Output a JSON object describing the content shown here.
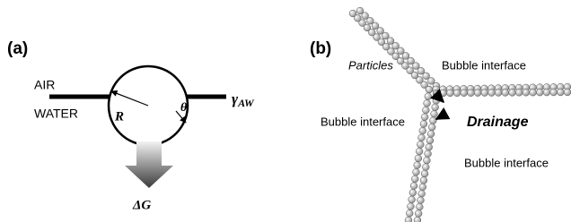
{
  "panel_a": {
    "label": "(a)",
    "air": "AIR",
    "water": "WATER",
    "radius": "R",
    "angle": "θ",
    "tension_symbol": "γ",
    "tension_subscript": "AW",
    "energy": "ΔG"
  },
  "panel_b": {
    "label": "(b)",
    "particles": "Particles",
    "interfaces": [
      "Bubble interface",
      "Bubble interface",
      "Bubble interface"
    ],
    "drainage": "Drainage"
  }
}
